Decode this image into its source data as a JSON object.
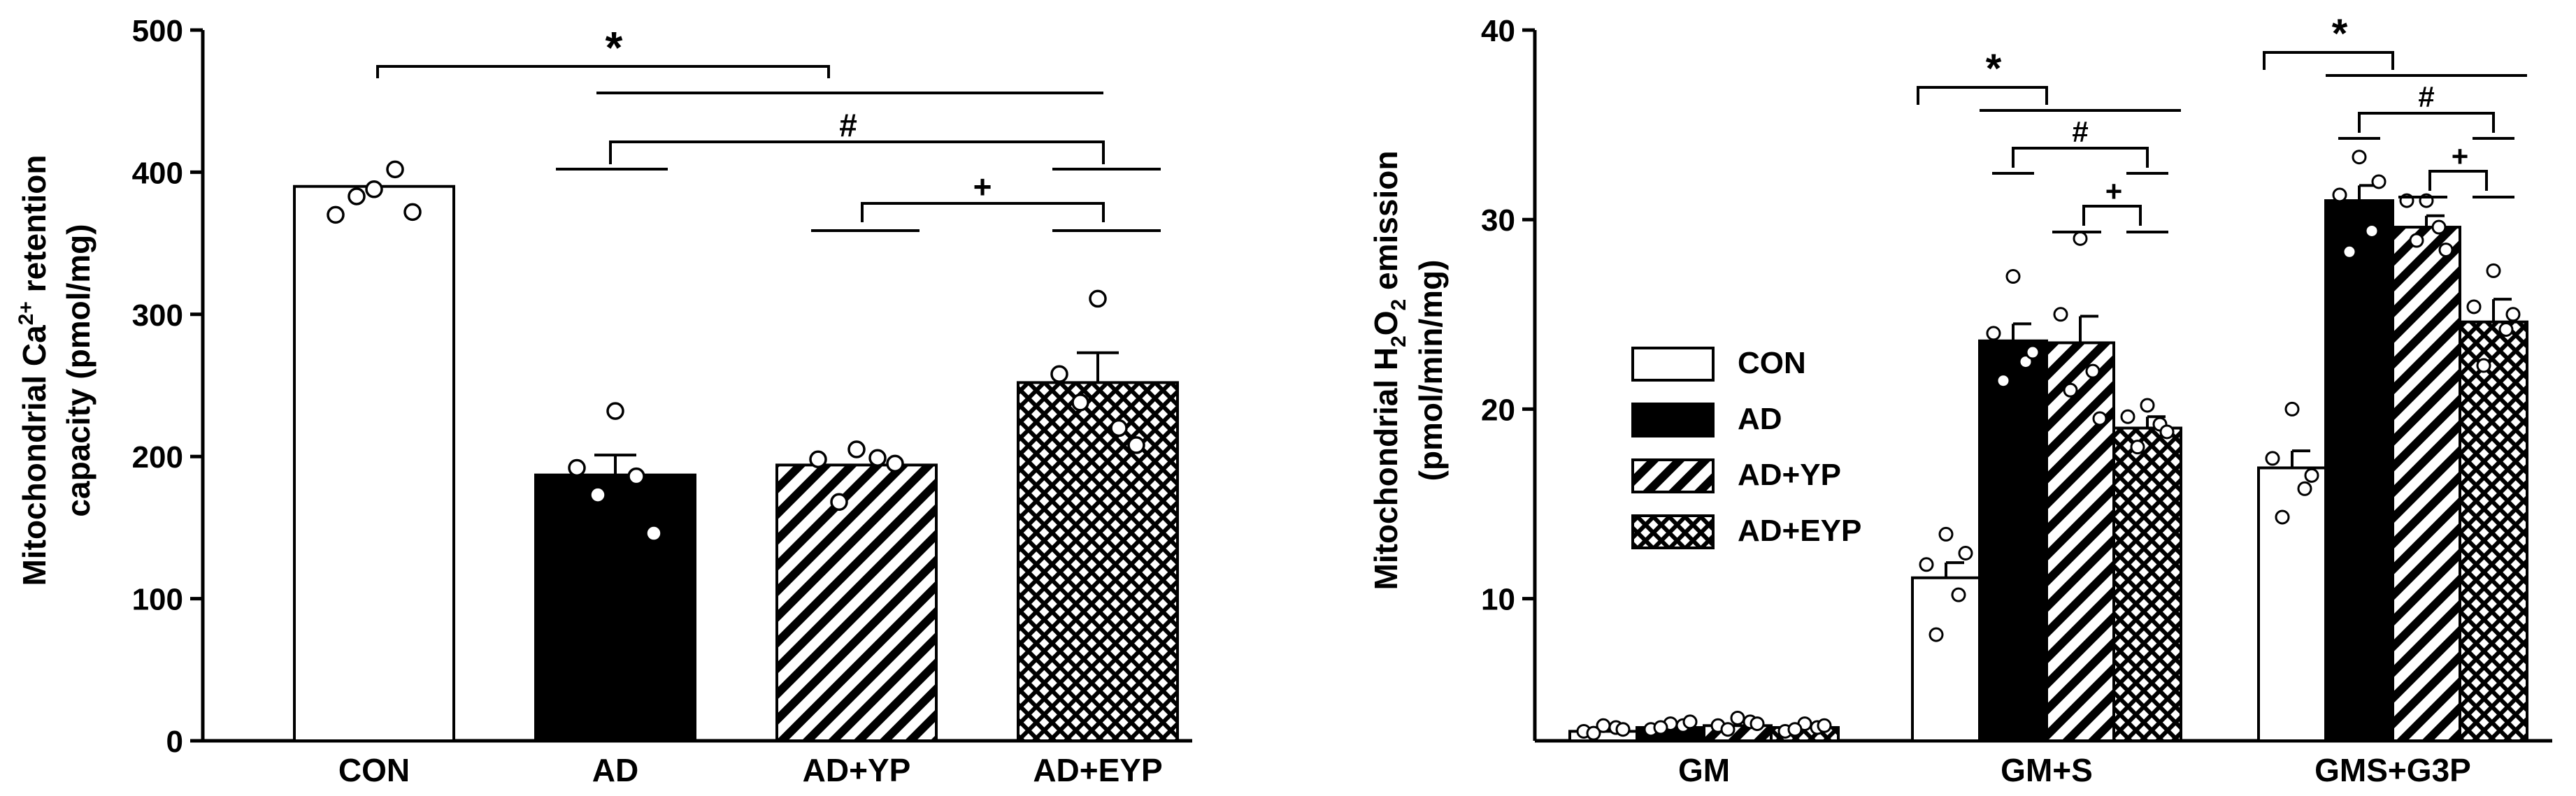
{
  "chart_data": [
    {
      "type": "bar",
      "title": "",
      "ylabel_line1": "Mitochondrial Ca",
      "ylabel_sup": "2+",
      "ylabel_line1_end": " retention",
      "ylabel_line2": "capacity (pmol/mg)",
      "xlabel": "",
      "ylim": [
        0,
        500
      ],
      "yticks": [
        0,
        100,
        200,
        300,
        400,
        500
      ],
      "categories": [
        "CON",
        "AD",
        "AD+YP",
        "AD+EYP"
      ],
      "values": [
        390,
        187,
        194,
        252
      ],
      "errors": [
        0,
        14,
        0,
        21
      ],
      "patterns": [
        "white",
        "black",
        "hatch",
        "cross"
      ],
      "points": [
        [
          388,
          370,
          402,
          383,
          372
        ],
        [
          232,
          192,
          186,
          173,
          146
        ],
        [
          205,
          198,
          199,
          168,
          195
        ],
        [
          311,
          258,
          220,
          238,
          208
        ]
      ],
      "annotations": [
        {
          "symbol": "*"
        },
        {
          "symbol": "#"
        },
        {
          "symbol": "+"
        }
      ]
    },
    {
      "type": "bar",
      "title": "",
      "ylabel_line1": "Mitochondrial H",
      "ylabel_sub1": "2",
      "ylabel_mid": "O",
      "ylabel_sub2": "2",
      "ylabel_line1_end": " emission",
      "ylabel_line2": "(pmol/min/mg)",
      "xlabel": "",
      "ylim": [
        2.5,
        40
      ],
      "yticks": [
        10,
        20,
        30,
        40
      ],
      "categories": [
        "GM",
        "GM+S",
        "GMS+G3P"
      ],
      "series": [
        {
          "name": "CON",
          "pattern": "white",
          "values": [
            3.0,
            11.1,
            16.9
          ],
          "errors": [
            0.2,
            0.8,
            0.9
          ],
          "points": [
            [
              3.3,
              3.0,
              3.2,
              2.9,
              3.1
            ],
            [
              13.4,
              11.8,
              10.2,
              8.1,
              12.4
            ],
            [
              20.0,
              17.4,
              15.8,
              14.3,
              16.5
            ]
          ]
        },
        {
          "name": "AD",
          "pattern": "black",
          "values": [
            3.2,
            23.6,
            31.0
          ],
          "errors": [
            0.2,
            0.9,
            0.8
          ],
          "points": [
            [
              3.4,
              3.1,
              3.3,
              3.2,
              3.5
            ],
            [
              27.0,
              24.0,
              22.5,
              21.5,
              23.0
            ],
            [
              33.3,
              31.3,
              29.4,
              28.3,
              32.0
            ]
          ]
        },
        {
          "name": "AD+YP",
          "pattern": "hatch",
          "values": [
            3.3,
            23.5,
            29.6
          ],
          "errors": [
            0.2,
            1.4,
            0.6
          ],
          "points": [
            [
              3.7,
              3.3,
              3.5,
              3.1,
              3.4
            ],
            [
              29.0,
              25.0,
              22.0,
              21.0,
              19.5
            ],
            [
              31.0,
              31.0,
              29.6,
              28.9,
              28.4
            ]
          ]
        },
        {
          "name": "AD+EYP",
          "pattern": "cross",
          "values": [
            3.2,
            19.0,
            24.6
          ],
          "errors": [
            0.2,
            0.6,
            1.2
          ],
          "points": [
            [
              3.4,
              3.0,
              3.2,
              3.1,
              3.3
            ],
            [
              20.2,
              19.6,
              19.2,
              18.0,
              18.8
            ],
            [
              27.3,
              25.4,
              24.2,
              22.3,
              25.0
            ]
          ]
        }
      ],
      "legend": {
        "position": "middle-left",
        "labels": [
          "CON",
          "AD",
          "AD+YP",
          "AD+EYP"
        ]
      },
      "annotations": [
        {
          "group": "GM+S",
          "symbols": [
            "*",
            "#",
            "+"
          ]
        },
        {
          "group": "GMS+G3P",
          "symbols": [
            "*",
            "#",
            "+"
          ]
        }
      ]
    }
  ]
}
